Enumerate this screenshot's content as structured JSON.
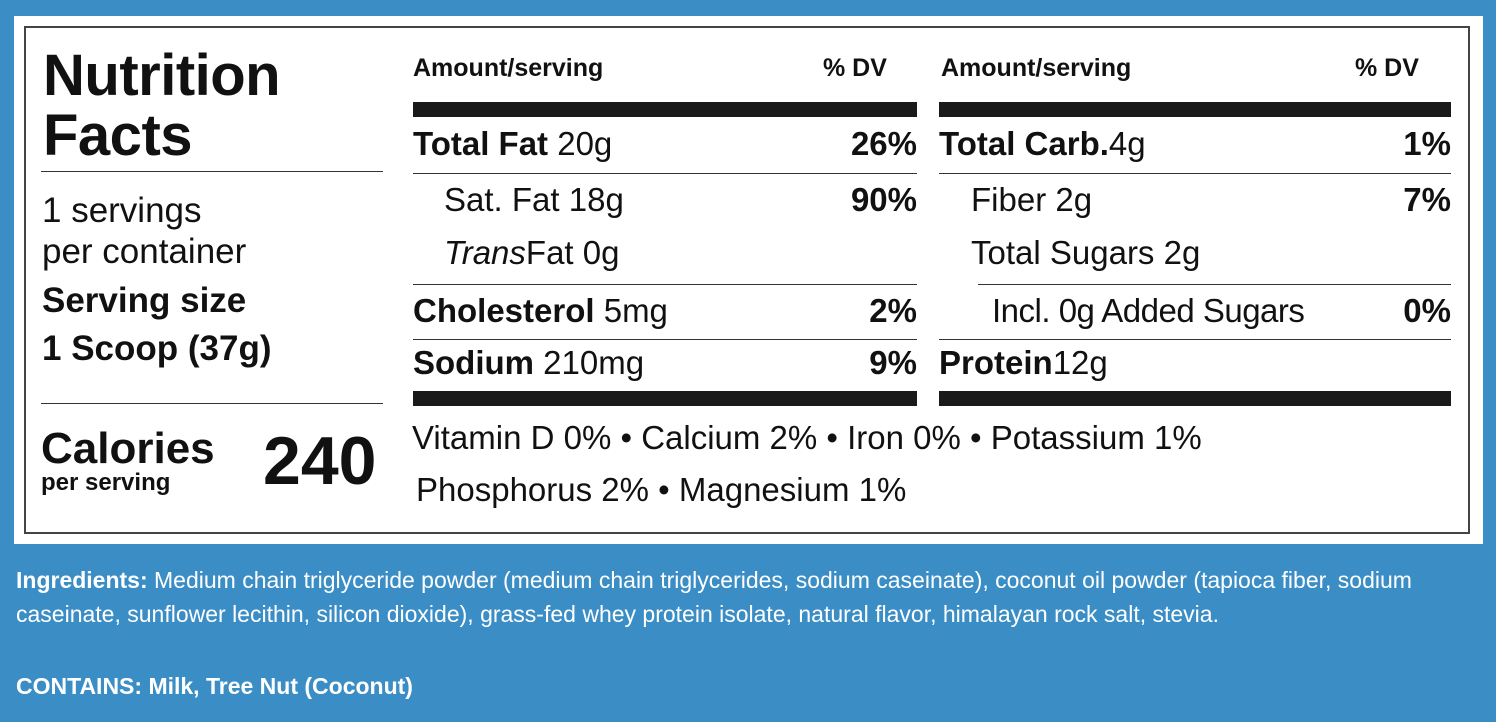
{
  "panel": {
    "title_line1": "Nutrition",
    "title_line2": "Facts",
    "servings_line1": "1 servings",
    "servings_line2": "per container",
    "serving_size_label": "Serving size",
    "serving_size_value": "1 Scoop (37g)",
    "calories_label": "Calories",
    "calories_sub": "per serving",
    "calories_value": "240"
  },
  "left_column": {
    "header_amount": "Amount/serving",
    "header_dv": "% DV",
    "rows": [
      {
        "name": "Total Fat",
        "amount": "20g",
        "dv": "26%"
      },
      {
        "name": "Sat. Fat",
        "amount": "18g",
        "dv": "90%"
      },
      {
        "name_italic": "Trans",
        "name": "Fat",
        "amount": "0g",
        "dv": ""
      },
      {
        "name": "Cholesterol",
        "amount": "5mg",
        "dv": "2%"
      },
      {
        "name": "Sodium",
        "amount": "210mg",
        "dv": "9%"
      }
    ]
  },
  "right_column": {
    "header_amount": "Amount/serving",
    "header_dv": "% DV",
    "rows": [
      {
        "name": "Total Carb.",
        "amount": "4g",
        "dv": "1%"
      },
      {
        "name": "Fiber",
        "amount": "2g",
        "dv": "7%"
      },
      {
        "name": "Total Sugars",
        "amount": "2g",
        "dv": ""
      },
      {
        "name": "Incl. 0g Added Sugars",
        "amount": "",
        "dv": "0%"
      },
      {
        "name": "Protein",
        "amount": "12g",
        "dv": ""
      }
    ]
  },
  "vitamins": {
    "line1": "Vitamin D 0% • Calcium 2% • Iron 0% • Potassium 1%",
    "line2": "Phosphorus 2% • Magnesium 1%"
  },
  "ingredients": {
    "label": "Ingredients:",
    "text": "Medium chain triglyceride powder (medium chain triglycerides, sodium caseinate), coconut oil powder (tapioca fiber, sodium caseinate, sunflower lecithin, silicon dioxide), grass-fed whey protein isolate, natural flavor, himalayan rock salt, stevia."
  },
  "contains": "CONTAINS: Milk, Tree Nut (Coconut)",
  "colors": {
    "background": "#3b8ec5",
    "label_bg": "#ffffff",
    "ink": "#111111"
  }
}
